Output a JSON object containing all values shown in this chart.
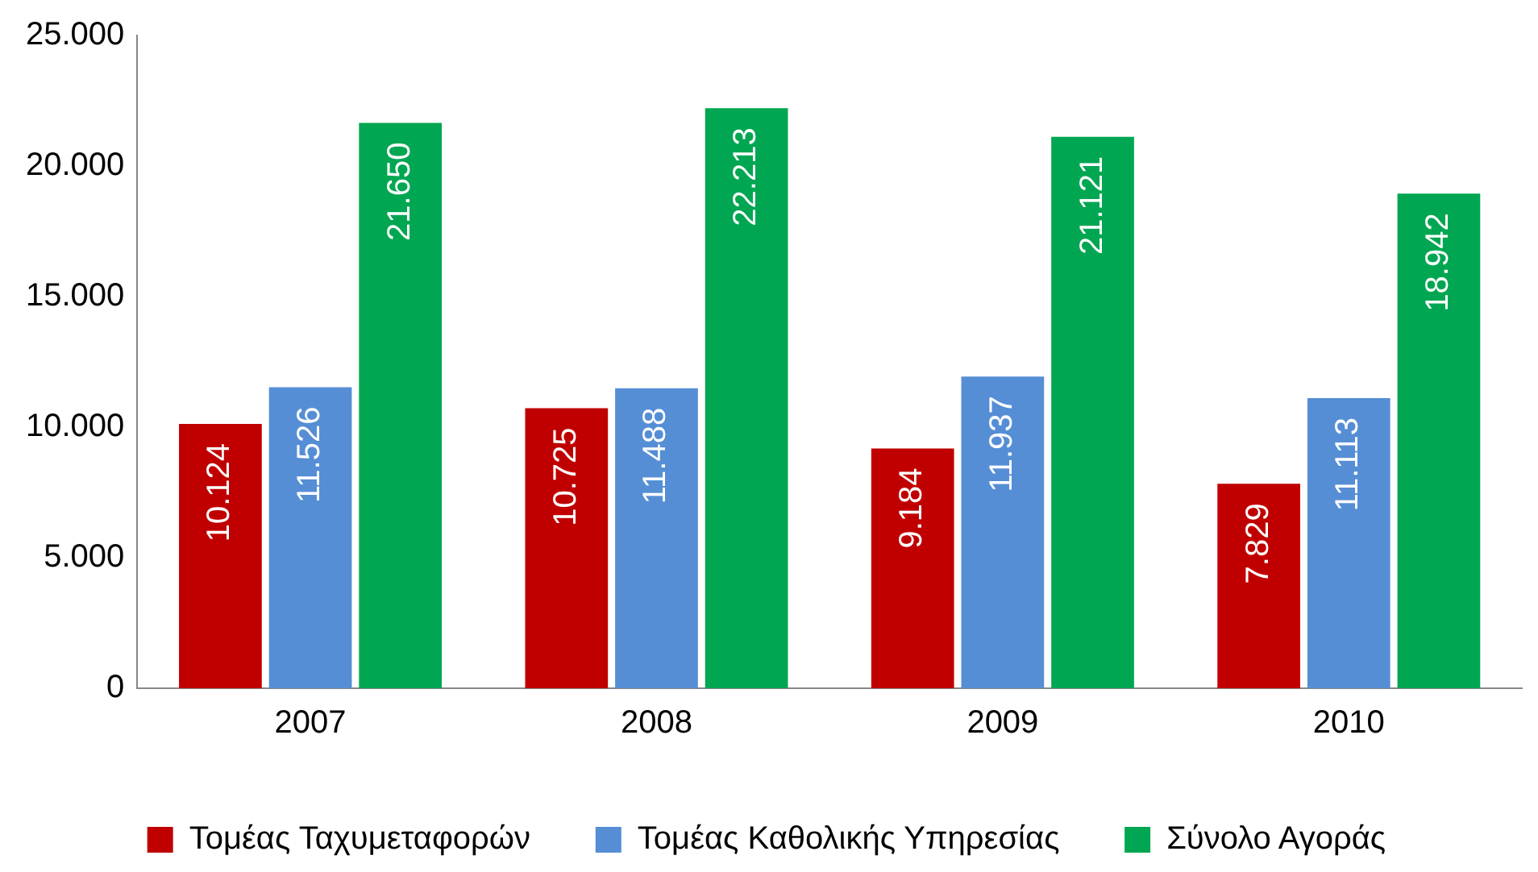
{
  "chart_data": {
    "type": "bar",
    "categories": [
      "2007",
      "2008",
      "2009",
      "2010"
    ],
    "series": [
      {
        "name": "Τομέας Ταχυμεταφορών",
        "color": "#c00000",
        "values": [
          10124,
          10725,
          9184,
          7829
        ],
        "value_labels": [
          "10.124",
          "10.725",
          "9.184",
          "7.829"
        ]
      },
      {
        "name": "Τομέας Καθολικής Υπηρεσίας",
        "color": "#558ed5",
        "values": [
          11526,
          11488,
          11937,
          11113
        ],
        "value_labels": [
          "11.526",
          "11.488",
          "11.937",
          "11.113"
        ]
      },
      {
        "name": "Σύνολο Αγοράς",
        "color": "#00a651",
        "values": [
          21650,
          22213,
          21121,
          18942
        ],
        "value_labels": [
          "21.650",
          "22.213",
          "21.121",
          "18.942"
        ]
      }
    ],
    "ylim": [
      0,
      25000
    ],
    "yticks": [
      {
        "value": 0,
        "label": "0"
      },
      {
        "value": 5000,
        "label": "5.000"
      },
      {
        "value": 10000,
        "label": "10.000"
      },
      {
        "value": 15000,
        "label": "15.000"
      },
      {
        "value": 20000,
        "label": "20.000"
      },
      {
        "value": 25000,
        "label": "25.000"
      }
    ],
    "grid": false,
    "legend": "bottom"
  }
}
